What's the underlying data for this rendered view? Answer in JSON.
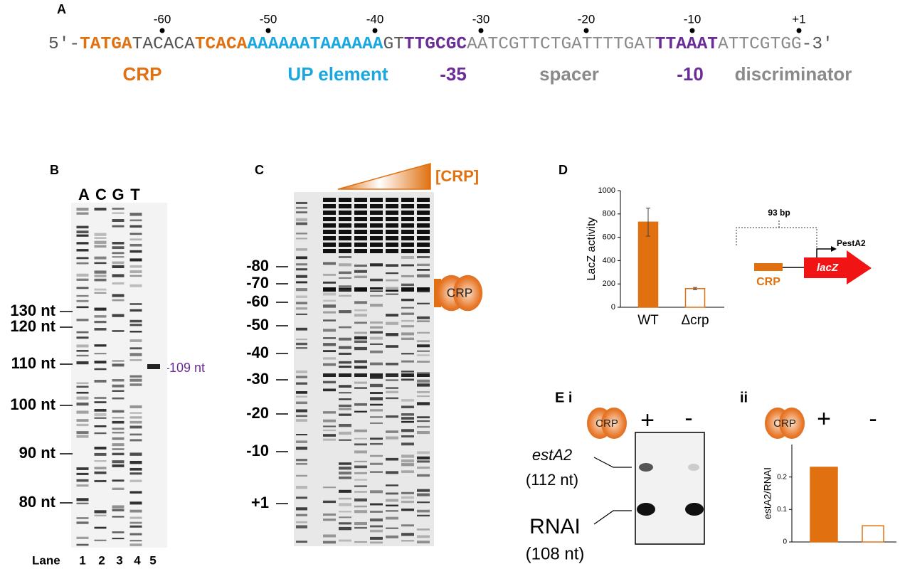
{
  "panel_a": {
    "label": "A",
    "positions": [
      "-60",
      "-50",
      "-40",
      "-30",
      "-20",
      "-10",
      "+1"
    ],
    "sequence": [
      {
        "text": "5′-",
        "color": "#555555",
        "bold": false
      },
      {
        "text": "TATGA",
        "color": "#e07010",
        "bold": true
      },
      {
        "text": "TACACA",
        "color": "#555555",
        "bold": false
      },
      {
        "text": "TCACA",
        "color": "#e07010",
        "bold": true
      },
      {
        "text": "AAAAAATAAAAAA",
        "color": "#1aa7e0",
        "bold": true
      },
      {
        "text": "GT",
        "color": "#555555",
        "bold": false
      },
      {
        "text": "TTGCGC",
        "color": "#6a2c96",
        "bold": true
      },
      {
        "text": "AATCGTTCTGATTTTGAT",
        "color": "#8a8a8a",
        "bold": false
      },
      {
        "text": "TTAAAT",
        "color": "#6a2c96",
        "bold": true
      },
      {
        "text": "ATTCGTGG",
        "color": "#8a8a8a",
        "bold": false
      },
      {
        "text": "-3′",
        "color": "#555555",
        "bold": false
      }
    ],
    "elements": [
      {
        "text": "CRP",
        "color": "#e07010"
      },
      {
        "text": "UP element",
        "color": "#1aa7e0"
      },
      {
        "text": "-35",
        "color": "#6a2c96"
      },
      {
        "text": "spacer",
        "color": "#8a8a8a"
      },
      {
        "text": "-10",
        "color": "#6a2c96"
      },
      {
        "text": "discriminator",
        "color": "#8a8a8a"
      }
    ]
  },
  "panel_b": {
    "label": "B",
    "lanes": [
      "A",
      "C",
      "G",
      "T"
    ],
    "markers": [
      "130 nt",
      "120 nt",
      "110 nt",
      "100 nt",
      "90 nt",
      "80 nt"
    ],
    "band": "–109 nt",
    "lane_title": "Lane",
    "lane_numbers": [
      "1",
      "2",
      "3",
      "4",
      "5"
    ]
  },
  "panel_c": {
    "label": "C",
    "concentration": "[CRP]",
    "markers": [
      "-80",
      "-70",
      "-60",
      "-50",
      "-40",
      "-30",
      "-20",
      "-10",
      "+1"
    ],
    "protein": "CRP"
  },
  "panel_d": {
    "label": "D",
    "bracket": "93 bp",
    "promoter": "PestA2",
    "gene": "lacZ",
    "site": "CRP"
  },
  "panel_e": {
    "label": "E i",
    "protein": "CRP",
    "conditions": [
      "+",
      "-"
    ],
    "transcript": "estA2",
    "transcript_size": "(112 nt)",
    "control": "RNAI",
    "control_size": "(108 nt)",
    "label_ii": "ii",
    "protein_ii": "CRP"
  },
  "chart_data": [
    {
      "type": "bar",
      "ylabel": "LacZ activity",
      "categories": [
        "WT",
        "Δcrp"
      ],
      "values": [
        730,
        160
      ],
      "errors": [
        120,
        10
      ],
      "color": "#e07010",
      "hollow": [
        false,
        true
      ],
      "ylim": [
        0,
        1000
      ],
      "yticks": [
        0,
        200,
        400,
        600,
        800,
        1000
      ]
    },
    {
      "type": "bar",
      "ylabel": "estA2/RNAI",
      "categories": [
        "+",
        "-"
      ],
      "values": [
        0.23,
        0.05
      ],
      "color": "#e07010",
      "hollow": [
        false,
        true
      ],
      "ylim": [
        0,
        0.3
      ],
      "yticks": [
        0,
        0.1,
        0.2
      ]
    }
  ]
}
